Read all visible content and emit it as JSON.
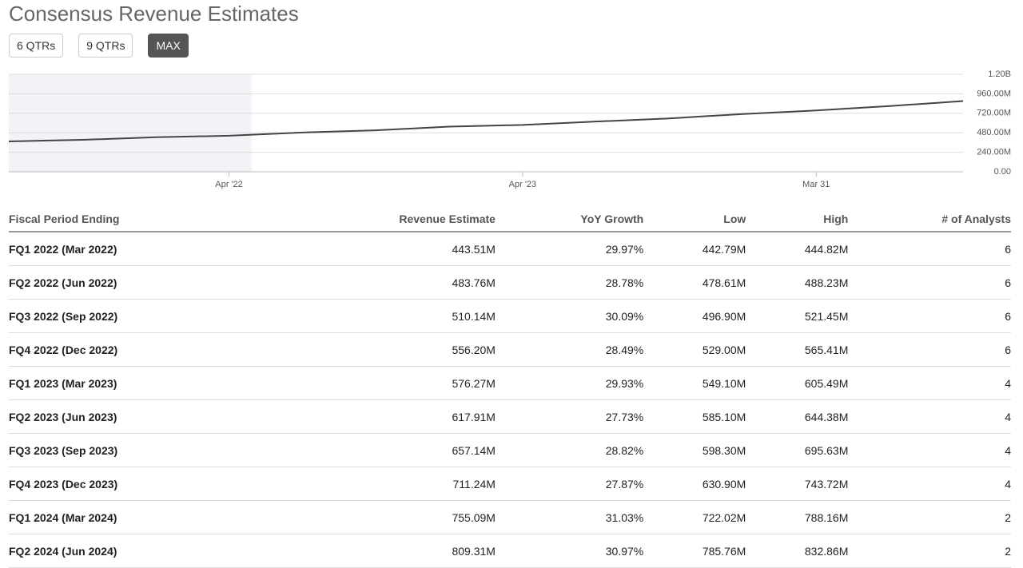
{
  "header": {
    "title": "Consensus Revenue Estimates"
  },
  "buttons": {
    "labels": [
      "6 QTRs",
      "9 QTRs",
      "MAX"
    ],
    "active": 2
  },
  "chart_data": {
    "type": "line",
    "categories": [
      null,
      null,
      null,
      "Apr '22",
      null,
      null,
      null,
      "Apr '23",
      null,
      null,
      null,
      "Mar 31",
      null,
      null
    ],
    "series": [
      {
        "name": null,
        "color": "#444444",
        "values": [
          374,
          393,
          425,
          443.51,
          483.76,
          510.14,
          556.2,
          576.27,
          617.91,
          657.14,
          711.24,
          755.09,
          809.31,
          870
        ]
      }
    ],
    "ylim": [
      0,
      1200
    ],
    "yticks": [
      {
        "value": 0,
        "label": "0.00"
      },
      {
        "value": 240,
        "label": "240.00M"
      },
      {
        "value": 480,
        "label": "480.00M"
      },
      {
        "value": 720,
        "label": "720.00M"
      },
      {
        "value": 960,
        "label": "960.00M"
      },
      {
        "value": 1200,
        "label": "1.20B"
      }
    ],
    "grid": true
  },
  "table": {
    "headers": [
      "Fiscal Period Ending",
      "Revenue Estimate",
      "YoY Growth",
      "Low",
      "High",
      "# of Analysts"
    ],
    "rows": [
      [
        "FQ1 2022 (Mar 2022)",
        "443.51M",
        "29.97%",
        "442.79M",
        "444.82M",
        "6"
      ],
      [
        "FQ2 2022 (Jun 2022)",
        "483.76M",
        "28.78%",
        "478.61M",
        "488.23M",
        "6"
      ],
      [
        "FQ3 2022 (Sep 2022)",
        "510.14M",
        "30.09%",
        "496.90M",
        "521.45M",
        "6"
      ],
      [
        "FQ4 2022 (Dec 2022)",
        "556.20M",
        "28.49%",
        "529.00M",
        "565.41M",
        "6"
      ],
      [
        "FQ1 2023 (Mar 2023)",
        "576.27M",
        "29.93%",
        "549.10M",
        "605.49M",
        "4"
      ],
      [
        "FQ2 2023 (Jun 2023)",
        "617.91M",
        "27.73%",
        "585.10M",
        "644.38M",
        "4"
      ],
      [
        "FQ3 2023 (Sep 2023)",
        "657.14M",
        "28.82%",
        "598.30M",
        "695.63M",
        "4"
      ],
      [
        "FQ4 2023 (Dec 2023)",
        "711.24M",
        "27.87%",
        "630.90M",
        "743.72M",
        "4"
      ],
      [
        "FQ1 2024 (Mar 2024)",
        "755.09M",
        "31.03%",
        "722.02M",
        "788.16M",
        "2"
      ],
      [
        "FQ2 2024 (Jun 2024)",
        "809.31M",
        "30.97%",
        "785.76M",
        "832.86M",
        "2"
      ]
    ]
  }
}
